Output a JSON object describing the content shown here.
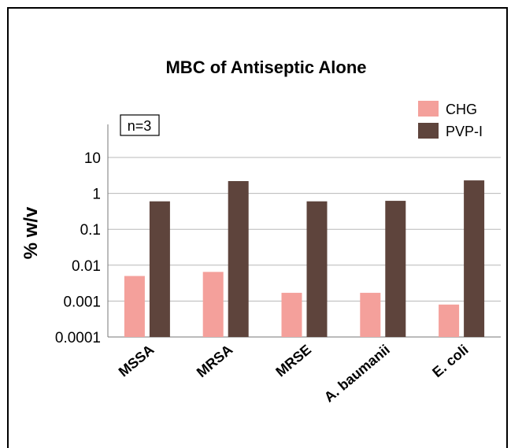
{
  "chart_data": {
    "type": "bar",
    "title": "MBC of Antiseptic Alone",
    "ylabel": "% w/v",
    "xlabel": "",
    "yscale": "log",
    "ylim": [
      0.0001,
      10
    ],
    "yticks": [
      10,
      1,
      0.1,
      0.01,
      0.001,
      0.0001
    ],
    "ytick_labels": [
      "10",
      "1",
      "0.1",
      "0.01",
      "0.001",
      "0.0001"
    ],
    "categories": [
      "MSSA",
      "MRSA",
      "MRSE",
      "A. baumanii",
      "E. coli"
    ],
    "series": [
      {
        "name": "CHG",
        "color": "#f4a09b",
        "values": [
          0.005,
          0.0065,
          0.0017,
          0.0017,
          0.0008
        ]
      },
      {
        "name": "PVP-I",
        "color": "#5e443c",
        "values": [
          0.6,
          2.2,
          0.6,
          0.62,
          2.3
        ]
      }
    ],
    "annotation": "n=3",
    "grid": true,
    "legend": "top-right"
  }
}
